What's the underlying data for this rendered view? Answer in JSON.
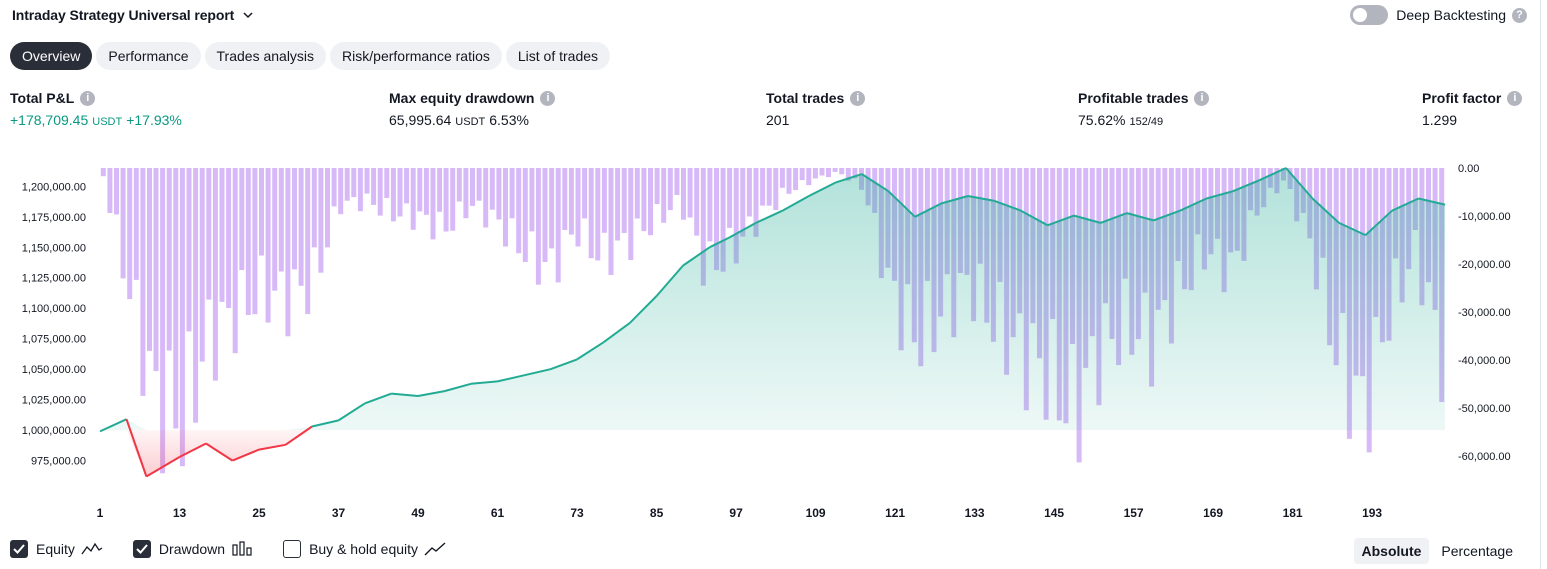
{
  "header": {
    "title": "Intraday Strategy Universal report",
    "deep_backtesting_label": "Deep Backtesting"
  },
  "tabs": [
    {
      "label": "Overview",
      "active": true
    },
    {
      "label": "Performance",
      "active": false
    },
    {
      "label": "Trades analysis",
      "active": false
    },
    {
      "label": "Risk/performance ratios",
      "active": false
    },
    {
      "label": "List of trades",
      "active": false
    }
  ],
  "metrics": {
    "total_pl": {
      "label": "Total P&L",
      "value": "+178,709.45",
      "unit": "USDT",
      "pct": "+17.93%"
    },
    "max_dd": {
      "label": "Max equity drawdown",
      "value": "65,995.64",
      "unit": "USDT",
      "pct": "6.53%"
    },
    "total_trades": {
      "label": "Total trades",
      "value": "201"
    },
    "profitable": {
      "label": "Profitable trades",
      "value": "75.62%",
      "ratio": "152/49"
    },
    "profit_factor": {
      "label": "Profit factor",
      "value": "1.299"
    }
  },
  "legend": {
    "equity": "Equity",
    "drawdown": "Drawdown",
    "buy_hold": "Buy & hold equity"
  },
  "mode": {
    "absolute": "Absolute",
    "percentage": "Percentage"
  },
  "colors": {
    "equity_up": "#22ab94",
    "equity_down": "#f23645",
    "drawdown": "#c9a2f5",
    "accent_text": "#089981"
  },
  "chart_data": {
    "type": "line",
    "x_ticks": [
      "1",
      "13",
      "25",
      "37",
      "49",
      "61",
      "73",
      "85",
      "97",
      "109",
      "121",
      "133",
      "145",
      "157",
      "169",
      "181",
      "193"
    ],
    "left_axis": {
      "ticks": [
        "1,200,000.00",
        "1,175,000.00",
        "1,150,000.00",
        "1,125,000.00",
        "1,100,000.00",
        "1,075,000.00",
        "1,050,000.00",
        "1,025,000.00",
        "1,000,000.00",
        "975,000.00"
      ],
      "ylim": [
        955000,
        1215000
      ]
    },
    "right_axis": {
      "ticks": [
        "0.00",
        "-10,000.00",
        "-20,000.00",
        "-30,000.00",
        "-40,000.00",
        "-50,000.00",
        "-60,000.00"
      ],
      "ylim": [
        -66000,
        0
      ]
    },
    "series": [
      {
        "name": "Equity",
        "x": [
          1,
          5,
          8,
          13,
          17,
          21,
          25,
          29,
          33,
          37,
          41,
          45,
          49,
          53,
          57,
          61,
          65,
          69,
          73,
          77,
          81,
          85,
          89,
          93,
          96,
          100,
          104,
          108,
          112,
          116,
          120,
          124,
          128,
          132,
          136,
          140,
          144,
          148,
          152,
          156,
          160,
          164,
          168,
          172,
          176,
          180,
          184,
          188,
          192,
          196,
          200,
          204
        ],
        "values": [
          999000,
          1009000,
          962000,
          978000,
          989000,
          975000,
          984000,
          988000,
          1003000,
          1008000,
          1022000,
          1030000,
          1028000,
          1032000,
          1038000,
          1040000,
          1045000,
          1050000,
          1058000,
          1072000,
          1088000,
          1110000,
          1135000,
          1150000,
          1158000,
          1170000,
          1180000,
          1192000,
          1203000,
          1210000,
          1196000,
          1175000,
          1186000,
          1192000,
          1188000,
          1180000,
          1168000,
          1176000,
          1170000,
          1178000,
          1172000,
          1180000,
          1190000,
          1196000,
          1205000,
          1215000,
          1190000,
          1170000,
          1160000,
          1180000,
          1190000,
          1185000
        ]
      },
      {
        "name": "Drawdown",
        "values": [
          -2000,
          -30000,
          -57000,
          -62000,
          -42000,
          -36000,
          -30000,
          -32000,
          -28000,
          -9000,
          -8000,
          -11000,
          -12000,
          -15000,
          -9000,
          -13000,
          -20000,
          -25000,
          -15000,
          -22000,
          -18000,
          -13000,
          -8000,
          -25000,
          -20000,
          -12000,
          -6000,
          -3000,
          -1000,
          -5000,
          -30000,
          -42000,
          -35000,
          -28000,
          -38000,
          -45000,
          -50000,
          -60000,
          -44000,
          -38000,
          -42000,
          -30000,
          -20000,
          -25000,
          -10000,
          -3000,
          -18000,
          -45000,
          -60000,
          -35000,
          -20000,
          -45000
        ]
      }
    ]
  }
}
